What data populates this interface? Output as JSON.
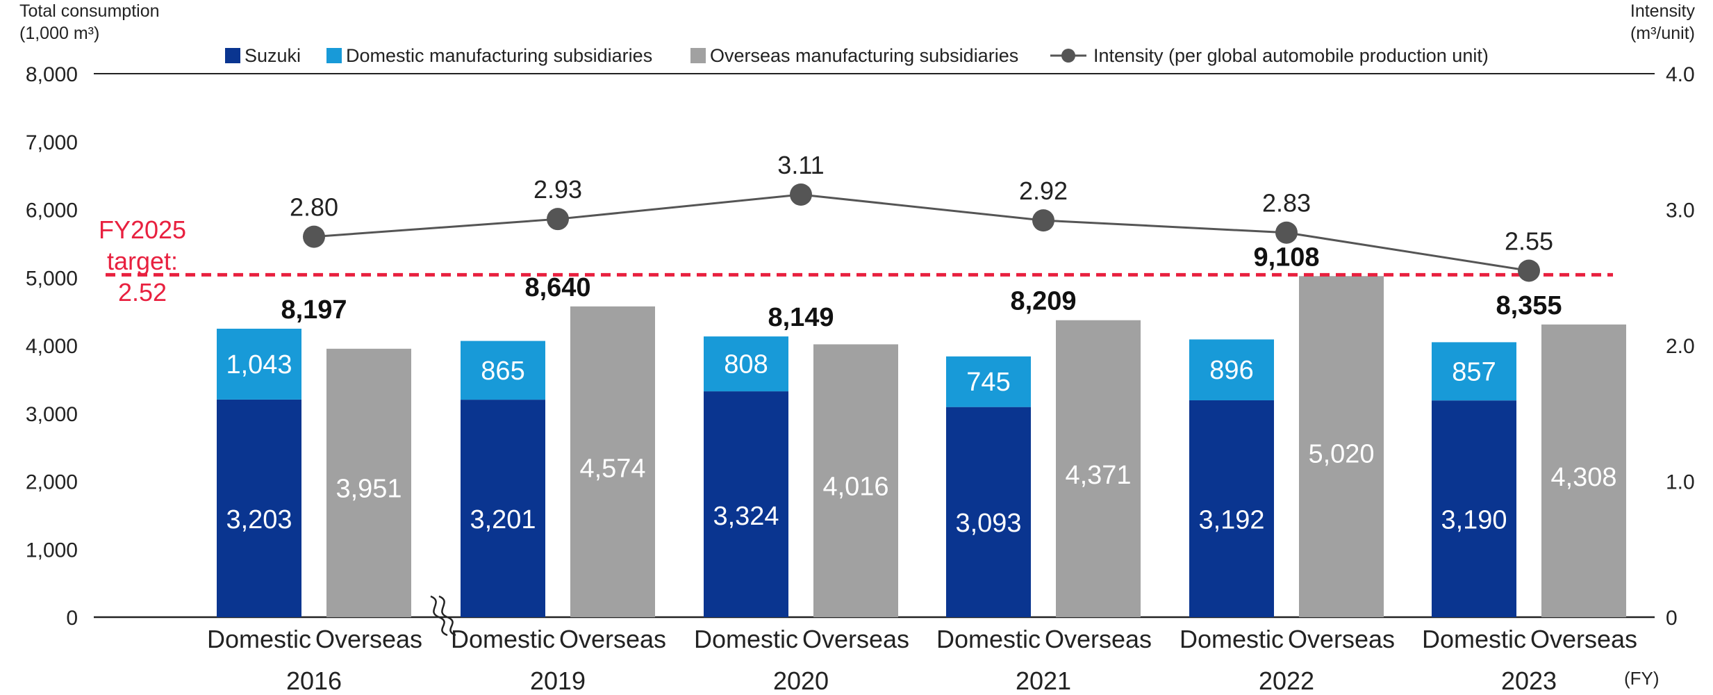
{
  "chart_data": {
    "type": "bar",
    "left_axis": {
      "title_line1": "Total consumption",
      "title_line2": "(1,000 m³)",
      "range": [
        0,
        8000
      ],
      "ticks": [
        "0",
        "1,000",
        "2,000",
        "3,000",
        "4,000",
        "5,000",
        "6,000",
        "7,000",
        "8,000"
      ]
    },
    "right_axis": {
      "title_line1": "Intensity",
      "title_line2": "(m³/unit)",
      "range": [
        0,
        4.0
      ],
      "ticks": [
        "0",
        "1.0",
        "2.0",
        "3.0",
        "4.0"
      ]
    },
    "x_unit": "(FY)",
    "legend": {
      "position": "top",
      "items": [
        {
          "label": "Suzuki",
          "color": "#0a3590",
          "shape": "square"
        },
        {
          "label": "Domestic manufacturing subsidiaries",
          "color": "#189ad8",
          "shape": "square"
        },
        {
          "label": "Overseas manufacturing subsidiaries",
          "color": "#a1a1a1",
          "shape": "square"
        },
        {
          "label": "Intensity (per global automobile production unit)",
          "color": "#555555",
          "shape": "line-marker"
        }
      ]
    },
    "colors": {
      "suzuki": "#0a3590",
      "domestic_subsidiaries": "#189ad8",
      "overseas": "#a1a1a1",
      "intensity_line": "#555555",
      "target_line": "#e8203f"
    },
    "category_labels": {
      "domestic": "Domestic",
      "overseas": "Overseas"
    },
    "years": [
      {
        "year": "2016",
        "suzuki": 3203,
        "suzuki_label": "3,203",
        "domestic_sub": 1043,
        "domestic_sub_label": "1,043",
        "overseas": 3951,
        "overseas_label": "3,951",
        "total_label": "8,197",
        "intensity": 2.8,
        "intensity_label": "2.80"
      },
      {
        "year": "2019",
        "suzuki": 3201,
        "suzuki_label": "3,201",
        "domestic_sub": 865,
        "domestic_sub_label": "865",
        "overseas": 4574,
        "overseas_label": "4,574",
        "total_label": "8,640",
        "intensity": 2.93,
        "intensity_label": "2.93"
      },
      {
        "year": "2020",
        "suzuki": 3324,
        "suzuki_label": "3,324",
        "domestic_sub": 808,
        "domestic_sub_label": "808",
        "overseas": 4016,
        "overseas_label": "4,016",
        "total_label": "8,149",
        "intensity": 3.11,
        "intensity_label": "3.11"
      },
      {
        "year": "2021",
        "suzuki": 3093,
        "suzuki_label": "3,093",
        "domestic_sub": 745,
        "domestic_sub_label": "745",
        "overseas": 4371,
        "overseas_label": "4,371",
        "total_label": "8,209",
        "intensity": 2.92,
        "intensity_label": "2.92"
      },
      {
        "year": "2022",
        "suzuki": 3192,
        "suzuki_label": "3,192",
        "domestic_sub": 896,
        "domestic_sub_label": "896",
        "overseas": 5020,
        "overseas_label": "5,020",
        "total_label": "9,108",
        "intensity": 2.83,
        "intensity_label": "2.83"
      },
      {
        "year": "2023",
        "suzuki": 3190,
        "suzuki_label": "3,190",
        "domestic_sub": 857,
        "domestic_sub_label": "857",
        "overseas": 4308,
        "overseas_label": "4,308",
        "total_label": "8,355",
        "intensity": 2.55,
        "intensity_label": "2.55"
      }
    ],
    "target": {
      "value": 2.52,
      "label_line1": "FY2025",
      "label_line2": "target:",
      "label_line3": "2.52",
      "style": "dashed"
    },
    "axis_break_after": "2016",
    "grid": false
  }
}
